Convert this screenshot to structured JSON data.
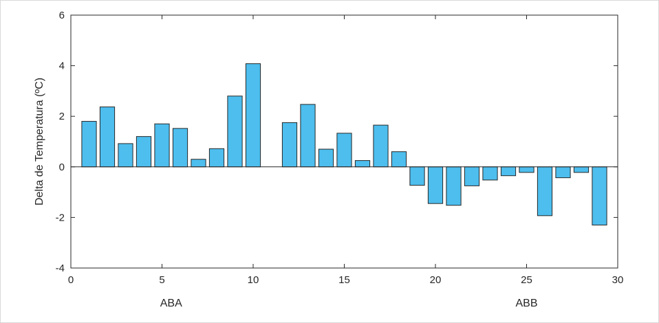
{
  "chart_data": {
    "type": "bar",
    "title": "",
    "ylabel": "Delta de Temperatura (ºC)",
    "xlabel": "",
    "xlim": [
      0,
      30
    ],
    "ylim": [
      -4,
      6
    ],
    "xticks": [
      0,
      5,
      10,
      15,
      20,
      25,
      30
    ],
    "yticks": [
      -4,
      -2,
      0,
      2,
      4,
      6
    ],
    "group_labels": [
      {
        "text": "ABA",
        "x": 5.5
      },
      {
        "text": "ABB",
        "x": 25
      }
    ],
    "bar_color": "#4DBEEE",
    "bar_edge_color": "#262626",
    "grid": false,
    "x": [
      1,
      2,
      3,
      4,
      5,
      6,
      7,
      8,
      9,
      10,
      12,
      13,
      14,
      15,
      16,
      17,
      18,
      19,
      20,
      21,
      22,
      23,
      24,
      25,
      26,
      27,
      28,
      29
    ],
    "values": [
      1.8,
      2.37,
      0.92,
      1.2,
      1.7,
      1.52,
      0.3,
      0.72,
      2.8,
      4.08,
      1.75,
      2.47,
      0.7,
      1.33,
      0.25,
      1.65,
      0.6,
      -0.73,
      -1.45,
      -1.52,
      -0.75,
      -0.52,
      -0.35,
      -0.22,
      -1.93,
      -0.43,
      -0.22,
      -2.3
    ]
  }
}
